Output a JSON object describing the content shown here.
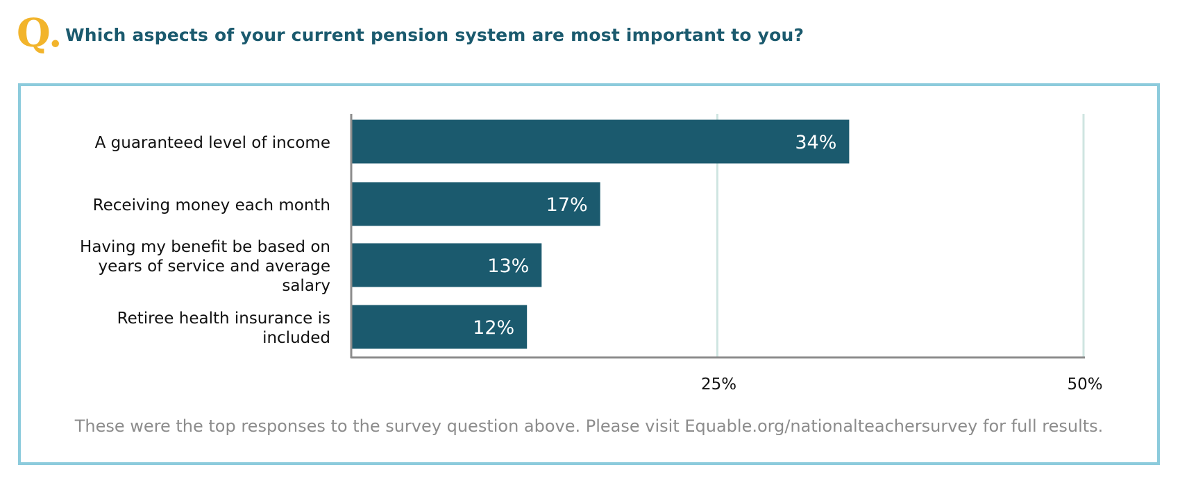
{
  "header": {
    "q_mark": "Q.",
    "question": "Which aspects of your current pension system are most important to you?"
  },
  "chart_data": {
    "type": "bar",
    "orientation": "horizontal",
    "categories": [
      [
        "A guaranteed level of income"
      ],
      [
        "Receiving money each month"
      ],
      [
        "Having my benefit be based on",
        "years of service and average",
        "salary"
      ],
      [
        "Retiree health insurance is",
        "included"
      ]
    ],
    "values": [
      34,
      17,
      13,
      12
    ],
    "value_labels": [
      "34%",
      "17%",
      "13%",
      "12%"
    ],
    "xlim": [
      0,
      50
    ],
    "ticks": [
      25,
      50
    ],
    "tick_labels": [
      "25%",
      "50%"
    ],
    "grid": true
  },
  "footnote": "These were the top responses to the survey question above. Please visit Equable.org/nationalteachersurvey for full results.",
  "colors": {
    "bar": "#1b5a6e",
    "bar_label": "#ffffff",
    "gridline": "#cfe5e1",
    "axis": "#8c8c8c",
    "frame": "#8ccbdc",
    "q_mark": "#f2b42b",
    "question": "#1b5a6e",
    "footnote": "#8c8c8c"
  }
}
